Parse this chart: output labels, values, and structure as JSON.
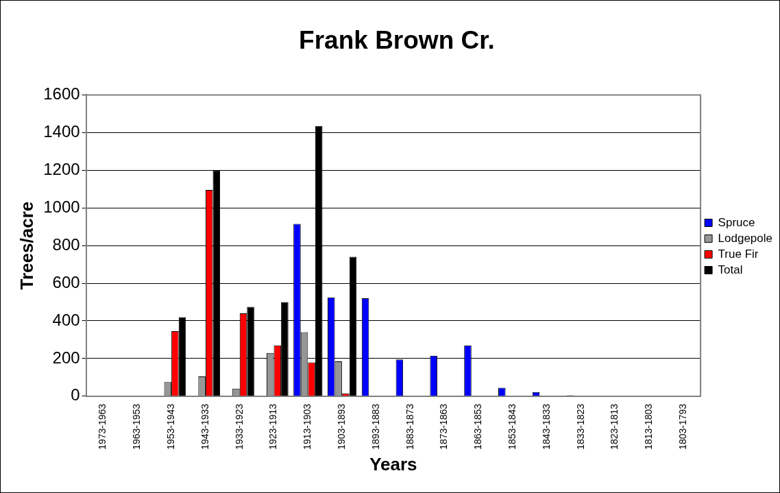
{
  "chart_data": {
    "type": "bar",
    "title": "Frank Brown Cr.",
    "xlabel": "Years",
    "ylabel": "Trees/acre",
    "categories": [
      "1973-1963",
      "1963-1953",
      "1953-1943",
      "1943-1933",
      "1933-1923",
      "1923-1913",
      "1913-1903",
      "1903-1893",
      "1893-1883",
      "1883-1873",
      "1873-1863",
      "1863-1853",
      "1853-1843",
      "1843-1833",
      "1833-1823",
      "1823-1813",
      "1813-1803",
      "1803-1793"
    ],
    "series": [
      {
        "name": "Spruce",
        "color": "#0000ff",
        "values": [
          0,
          0,
          0,
          0,
          0,
          0,
          915,
          525,
          520,
          195,
          215,
          270,
          45,
          22,
          5,
          0,
          0,
          0
        ]
      },
      {
        "name": "Lodgepole",
        "color": "#969696",
        "values": [
          0,
          0,
          75,
          105,
          40,
          230,
          340,
          185,
          0,
          0,
          0,
          0,
          0,
          0,
          0,
          0,
          0,
          0
        ]
      },
      {
        "name": "True Fir",
        "color": "#ff0000",
        "values": [
          0,
          0,
          345,
          1095,
          440,
          270,
          180,
          15,
          0,
          0,
          0,
          0,
          0,
          0,
          0,
          0,
          0,
          0
        ]
      },
      {
        "name": "Total",
        "color": "#000000",
        "values": [
          0,
          0,
          420,
          1200,
          475,
          500,
          1435,
          740,
          0,
          0,
          0,
          0,
          0,
          0,
          0,
          0,
          0,
          0
        ]
      }
    ],
    "ylim": [
      0,
      1600
    ],
    "yticks": [
      0,
      200,
      400,
      600,
      800,
      1000,
      1200,
      1400,
      1600
    ],
    "grid": "y",
    "legend": "right"
  }
}
